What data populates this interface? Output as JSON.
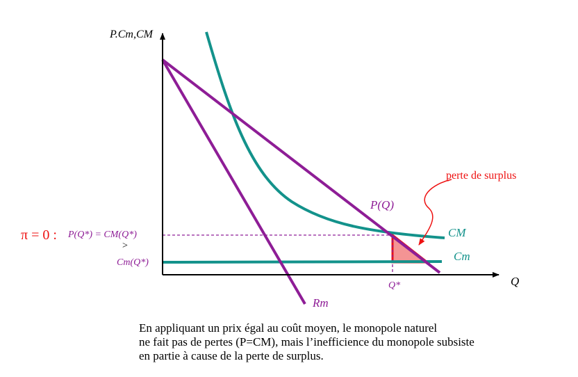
{
  "colors": {
    "purple": "#8e1d96",
    "teal": "#13928b",
    "red": "#ee1111",
    "fill_red": "#f49494",
    "black": "#000000"
  },
  "axes": {
    "y_label": "P.Cm,CM",
    "x_label": "Q"
  },
  "curves": {
    "demand": "P(Q)",
    "marginal_revenue": "Rm",
    "average_cost": "CM",
    "marginal_cost": "Cm"
  },
  "annotations": {
    "pi_condition": "π = 0 :",
    "price_equals_cm": "P(Q*) = CM(Q*)",
    "greater_than": ">",
    "cm_at_q": "Cm(Q*)",
    "q_star": "Q*",
    "surplus_loss": "perte de surplus"
  },
  "caption": {
    "line1": "En appliquant un prix égal au coût moyen, le monopole naturel",
    "line2": "ne fait pas de pertes (P=CM), mais l’inefficience du monopole subsiste",
    "line3": "en partie à cause de la perte de surplus."
  }
}
